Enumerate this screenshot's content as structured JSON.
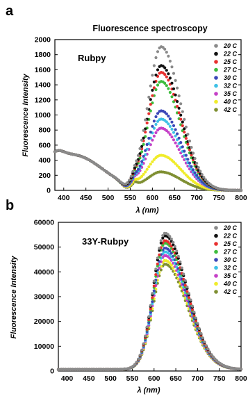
{
  "chart_data": [
    {
      "type": "scatter",
      "panel_label": "a",
      "title": "Fluorescence spectroscopy",
      "sample_label": "Rubpy",
      "xlabel": "λ (nm)",
      "ylabel": "Fluorescence Intensity",
      "xlim": [
        380,
        800
      ],
      "ylim": [
        0,
        2000
      ],
      "xticks": [
        400,
        450,
        500,
        550,
        600,
        650,
        700,
        750,
        800
      ],
      "yticks": [
        0,
        200,
        400,
        600,
        800,
        1000,
        1200,
        1400,
        1600,
        1800,
        2000
      ],
      "grid": false,
      "legend_position": "top-right",
      "peak_nm": 620,
      "series": [
        {
          "name": "20 C",
          "color": "#8a8a8a",
          "peak": 1900
        },
        {
          "name": "22 C",
          "color": "#111111",
          "peak": 1650
        },
        {
          "name": "25 C",
          "color": "#e8302f",
          "peak": 1560
        },
        {
          "name": "27 C",
          "color": "#3dbd3d",
          "peak": 1440
        },
        {
          "name": "30 C",
          "color": "#3c47b8",
          "peak": 1050
        },
        {
          "name": "32 C",
          "color": "#3ec1e6",
          "peak": 940
        },
        {
          "name": "35 C",
          "color": "#c540c7",
          "peak": 820
        },
        {
          "name": "40 C",
          "color": "#f0ec2a",
          "peak": 460
        },
        {
          "name": "42 C",
          "color": "#7f8f32",
          "peak": 240
        }
      ]
    },
    {
      "type": "scatter",
      "panel_label": "b",
      "sample_label": "33Y-Rubpy",
      "xlabel": "λ (nm)",
      "ylabel": "Fluorescence Intensity",
      "xlim": [
        380,
        800
      ],
      "ylim": [
        0,
        60000
      ],
      "xticks": [
        400,
        450,
        500,
        550,
        600,
        650,
        700,
        750,
        800
      ],
      "yticks": [
        0,
        10000,
        20000,
        30000,
        40000,
        50000,
        60000
      ],
      "grid": false,
      "legend_position": "top-right",
      "peak_nm": 625,
      "series": [
        {
          "name": "20 C",
          "color": "#8a8a8a",
          "peak": 55000
        },
        {
          "name": "22 C",
          "color": "#111111",
          "peak": 54000
        },
        {
          "name": "25 C",
          "color": "#e8302f",
          "peak": 52000
        },
        {
          "name": "27 C",
          "color": "#3dbd3d",
          "peak": 51000
        },
        {
          "name": "30 C",
          "color": "#3c47b8",
          "peak": 49000
        },
        {
          "name": "32 C",
          "color": "#3ec1e6",
          "peak": 47500
        },
        {
          "name": "35 C",
          "color": "#c540c7",
          "peak": 46000
        },
        {
          "name": "40 C",
          "color": "#f0ec2a",
          "peak": 44000
        },
        {
          "name": "42 C",
          "color": "#7f8f32",
          "peak": 42500
        }
      ]
    }
  ]
}
